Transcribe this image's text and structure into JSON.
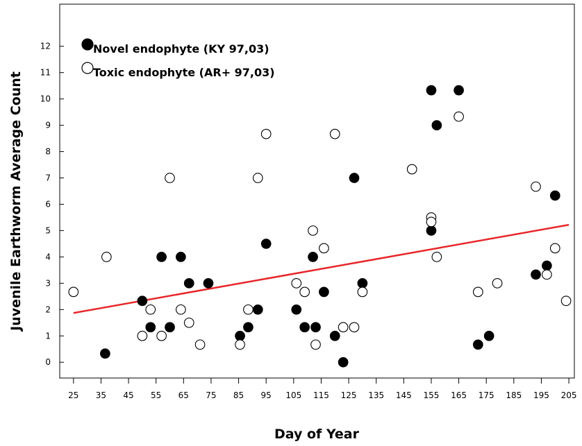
{
  "chart_data": {
    "type": "scatter",
    "xlabel": "Day of Year",
    "ylabel": "Juvenile Earthworm Average Count",
    "xlim": [
      20,
      207
    ],
    "ylim": [
      -0.6,
      13.6
    ],
    "xticks": [
      25,
      35,
      45,
      55,
      65,
      75,
      85,
      95,
      105,
      115,
      125,
      135,
      145,
      155,
      165,
      175,
      185,
      195,
      205
    ],
    "yticks": [
      0,
      1,
      2,
      3,
      4,
      5,
      6,
      7,
      8,
      9,
      10,
      11,
      12
    ],
    "grid": false,
    "legend_position": "top-left",
    "series": [
      {
        "name": "Novel endophyte (KY 97,03)",
        "marker": "filled-circle",
        "color": "#000000",
        "points": [
          [
            36.5,
            0.33
          ],
          [
            50,
            2.33
          ],
          [
            53,
            1.33
          ],
          [
            57,
            4
          ],
          [
            60,
            1.33
          ],
          [
            64,
            4
          ],
          [
            67,
            3
          ],
          [
            74,
            3
          ],
          [
            85.5,
            1
          ],
          [
            88.5,
            1.33
          ],
          [
            92,
            2
          ],
          [
            95,
            4.5
          ],
          [
            106,
            2
          ],
          [
            109,
            1.33
          ],
          [
            112,
            4
          ],
          [
            113,
            1.33
          ],
          [
            116,
            2.67
          ],
          [
            120,
            1
          ],
          [
            123,
            0
          ],
          [
            127,
            7
          ],
          [
            130,
            3
          ],
          [
            155,
            10.33
          ],
          [
            155,
            5
          ],
          [
            157,
            9
          ],
          [
            165,
            10.33
          ],
          [
            172,
            0.67
          ],
          [
            176,
            1
          ],
          [
            193,
            3.33
          ],
          [
            197,
            3.67
          ],
          [
            200,
            6.33
          ]
        ]
      },
      {
        "name": "Toxic endophyte (AR+  97,03)",
        "marker": "open-circle",
        "color": "#000000",
        "points": [
          [
            25,
            2.67
          ],
          [
            37,
            4
          ],
          [
            50,
            1
          ],
          [
            53,
            2
          ],
          [
            57,
            1
          ],
          [
            60,
            7
          ],
          [
            64,
            2
          ],
          [
            67,
            1.5
          ],
          [
            71,
            0.67
          ],
          [
            85.5,
            0.67
          ],
          [
            88.5,
            2
          ],
          [
            92,
            7
          ],
          [
            95,
            8.67
          ],
          [
            106,
            3
          ],
          [
            109,
            2.67
          ],
          [
            112,
            5
          ],
          [
            113,
            0.67
          ],
          [
            116,
            4.33
          ],
          [
            120,
            8.67
          ],
          [
            123,
            1.33
          ],
          [
            127,
            1.33
          ],
          [
            130,
            2.67
          ],
          [
            148,
            7.33
          ],
          [
            155,
            5.5
          ],
          [
            155,
            5.33
          ],
          [
            157,
            4
          ],
          [
            165,
            9.33
          ],
          [
            172,
            2.67
          ],
          [
            179,
            3
          ],
          [
            193,
            6.67
          ],
          [
            197,
            3.33
          ],
          [
            200,
            4.33
          ],
          [
            204,
            2.33
          ]
        ]
      }
    ],
    "trendline": {
      "color": "#e8262a",
      "x": [
        25,
        205
      ],
      "y": [
        1.87,
        5.22
      ]
    }
  }
}
